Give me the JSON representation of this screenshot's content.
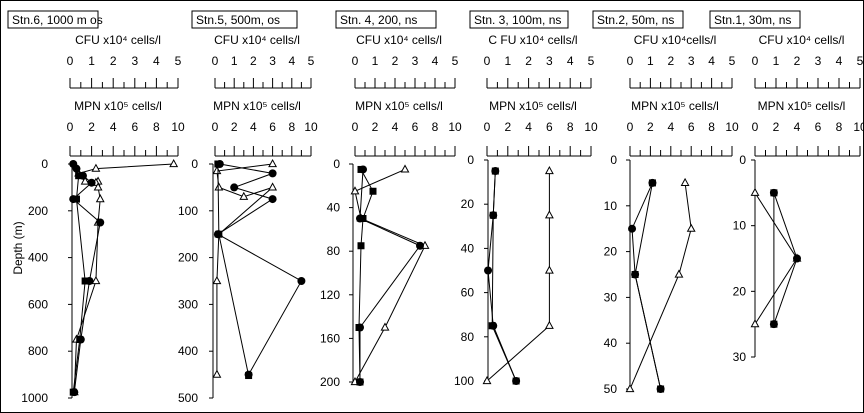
{
  "figure": {
    "ylabel": "Depth (m)"
  },
  "chart_data": [
    {
      "type": "line",
      "title": "Stn.6, 1000 m os",
      "cfu_label": "CFU x10⁴ cells/l",
      "mpn_label": "MPN x10⁵ cells/l",
      "cfu_ticks": [
        "0",
        "1",
        "2",
        "3",
        "4",
        "5"
      ],
      "mpn_ticks": [
        "0",
        "2",
        "4",
        "6",
        "8",
        "10"
      ],
      "y_ticks": [
        "0",
        "200",
        "400",
        "600",
        "800",
        "1000"
      ],
      "ylim": [
        0,
        1000
      ],
      "series": [
        {
          "marker": "triangle",
          "axis": "cfu",
          "points": [
            [
              4.8,
              0
            ],
            [
              1.2,
              20
            ],
            [
              0.4,
              40
            ],
            [
              0.7,
              75
            ],
            [
              1.3,
              75
            ],
            [
              1.2,
              80
            ],
            [
              1.3,
              100
            ],
            [
              1.4,
              150
            ],
            [
              1.3,
              250
            ],
            [
              1.2,
              500
            ],
            [
              0.3,
              750
            ],
            [
              0.2,
              975
            ]
          ]
        },
        {
          "marker": "circle",
          "axis": "mpn",
          "points": [
            [
              0.3,
              0
            ],
            [
              0.6,
              20
            ],
            [
              1.2,
              50
            ],
            [
              2.0,
              80
            ],
            [
              0.3,
              150
            ],
            [
              2.8,
              250
            ],
            [
              1.8,
              500
            ],
            [
              1.0,
              750
            ],
            [
              0.4,
              975
            ]
          ]
        },
        {
          "marker": "square",
          "axis": "mpn",
          "points": [
            [
              0.8,
              50
            ],
            [
              0.6,
              150
            ],
            [
              1.4,
              500
            ],
            [
              0.9,
              750
            ],
            [
              0.3,
              975
            ]
          ]
        }
      ]
    },
    {
      "type": "line",
      "title": "Stn.5, 500m, os",
      "cfu_label": "CFU x10⁴ cells/l",
      "mpn_label": "MPN x10⁵ cells/l",
      "cfu_ticks": [
        "0",
        "1",
        "2",
        "3",
        "4",
        "5"
      ],
      "mpn_ticks": [
        "0",
        "2",
        "4",
        "6",
        "8",
        "10"
      ],
      "y_ticks": [
        "0",
        "100",
        "200",
        "300",
        "400",
        "500"
      ],
      "ylim": [
        0,
        500
      ],
      "series": [
        {
          "marker": "triangle",
          "axis": "cfu",
          "points": [
            [
              3.0,
              0
            ],
            [
              0.1,
              15
            ],
            [
              0.2,
              50
            ],
            [
              1.5,
              70
            ],
            [
              3.0,
              50
            ],
            [
              0.2,
              150
            ],
            [
              0.1,
              250
            ],
            [
              0.1,
              450
            ]
          ]
        },
        {
          "marker": "circle",
          "axis": "mpn",
          "points": [
            [
              0.5,
              0
            ],
            [
              6.0,
              20
            ],
            [
              2.0,
              50
            ],
            [
              6.0,
              75
            ],
            [
              0.3,
              150
            ],
            [
              9.0,
              250
            ],
            [
              3.5,
              450
            ]
          ]
        },
        {
          "marker": "square",
          "axis": "mpn",
          "points": [
            [
              0.3,
              0
            ],
            [
              0.4,
              150
            ],
            [
              3.5,
              452
            ]
          ]
        }
      ]
    },
    {
      "type": "line",
      "title": "Stn. 4, 200, ns",
      "cfu_label": "CFU x10⁴ cells/l",
      "mpn_label": "MPN x10⁵ cells/l",
      "cfu_ticks": [
        "0",
        "1",
        "2",
        "3",
        "4",
        "5"
      ],
      "mpn_ticks": [
        "0",
        "2",
        "4",
        "6",
        "8",
        "10"
      ],
      "y_ticks": [
        "0",
        "40",
        "80",
        "120",
        "160",
        "200"
      ],
      "ylim": [
        0,
        200
      ],
      "series": [
        {
          "marker": "triangle",
          "axis": "cfu",
          "points": [
            [
              2.5,
              5
            ],
            [
              0.0,
              25
            ],
            [
              0.3,
              50
            ],
            [
              3.5,
              75
            ],
            [
              1.5,
              150
            ],
            [
              0.0,
              200
            ]
          ]
        },
        {
          "marker": "circle",
          "axis": "mpn",
          "points": [
            [
              0.8,
              5
            ],
            [
              0.5,
              50
            ],
            [
              6.5,
              75
            ],
            [
              0.5,
              150
            ],
            [
              0.5,
              200
            ]
          ]
        },
        {
          "marker": "square",
          "axis": "mpn",
          "points": [
            [
              0.6,
              5
            ],
            [
              1.8,
              25
            ],
            [
              0.8,
              50
            ],
            [
              0.6,
              75
            ],
            [
              0.4,
              150
            ],
            [
              0.5,
              200
            ]
          ]
        }
      ]
    },
    {
      "type": "line",
      "title": "Stn. 3, 100m, ns",
      "cfu_label": "C FU x10⁴ cells/l",
      "mpn_label": "MPN x10⁵ cells/l",
      "cfu_ticks": [
        "0",
        "1",
        "2",
        "3",
        "4",
        "5"
      ],
      "mpn_ticks": [
        "0",
        "2",
        "4",
        "6",
        "8",
        "10"
      ],
      "y_ticks": [
        "0",
        "20",
        "40",
        "60",
        "80",
        "100"
      ],
      "ylim": [
        0,
        100
      ],
      "series": [
        {
          "marker": "triangle",
          "axis": "cfu",
          "points": [
            [
              3.0,
              5
            ],
            [
              3.0,
              25
            ],
            [
              3.0,
              50
            ],
            [
              3.0,
              75
            ],
            [
              0.0,
              100
            ]
          ]
        },
        {
          "marker": "circle",
          "axis": "mpn",
          "points": [
            [
              0.8,
              5
            ],
            [
              0.6,
              25
            ],
            [
              0.1,
              50
            ],
            [
              0.6,
              75
            ],
            [
              2.8,
              100
            ]
          ]
        },
        {
          "marker": "square",
          "axis": "mpn",
          "points": [
            [
              0.8,
              5
            ],
            [
              0.6,
              25
            ],
            [
              0.5,
              75
            ],
            [
              2.8,
              100
            ]
          ]
        }
      ]
    },
    {
      "type": "line",
      "title": "Stn.2, 50m, ns",
      "cfu_label": "CFU x10⁴cells/l",
      "mpn_label": "MPN x10⁵ cells/l",
      "cfu_ticks": [
        "0",
        "1",
        "2",
        "3",
        "4",
        "5"
      ],
      "mpn_ticks": [
        "0",
        "2",
        "4",
        "6",
        "8",
        "10"
      ],
      "y_ticks": [
        "0",
        "10",
        "20",
        "30",
        "40",
        "50"
      ],
      "ylim": [
        0,
        50
      ],
      "series": [
        {
          "marker": "triangle",
          "axis": "cfu",
          "points": [
            [
              2.7,
              5
            ],
            [
              3.0,
              15
            ],
            [
              2.4,
              25
            ],
            [
              0.0,
              50
            ]
          ]
        },
        {
          "marker": "circle",
          "axis": "mpn",
          "points": [
            [
              2.2,
              5
            ],
            [
              0.2,
              15
            ],
            [
              0.5,
              25
            ],
            [
              3.0,
              50
            ]
          ]
        },
        {
          "marker": "square",
          "axis": "mpn",
          "points": [
            [
              2.2,
              5
            ],
            [
              0.5,
              25
            ],
            [
              3.0,
              50
            ]
          ]
        }
      ]
    },
    {
      "type": "line",
      "title": "Stn.1, 30m, ns",
      "cfu_label": "CFU x10⁴ cells/l",
      "mpn_label": "MPN x10⁵ cells/l",
      "cfu_ticks": [
        "0",
        "1",
        "2",
        "3",
        "4",
        "5"
      ],
      "mpn_ticks": [
        "0",
        "2",
        "4",
        "6",
        "8",
        "10"
      ],
      "y_ticks": [
        "0",
        "10",
        "20",
        "30"
      ],
      "ylim": [
        0,
        30
      ],
      "series": [
        {
          "marker": "triangle",
          "axis": "cfu",
          "points": [
            [
              0.0,
              5
            ],
            [
              2.0,
              15
            ],
            [
              0.0,
              25
            ]
          ]
        },
        {
          "marker": "circle",
          "axis": "mpn",
          "points": [
            [
              1.8,
              5
            ],
            [
              4.0,
              15
            ],
            [
              1.8,
              25
            ]
          ]
        },
        {
          "marker": "square",
          "axis": "mpn",
          "points": [
            [
              1.8,
              5
            ],
            [
              1.8,
              25
            ]
          ]
        }
      ]
    }
  ]
}
